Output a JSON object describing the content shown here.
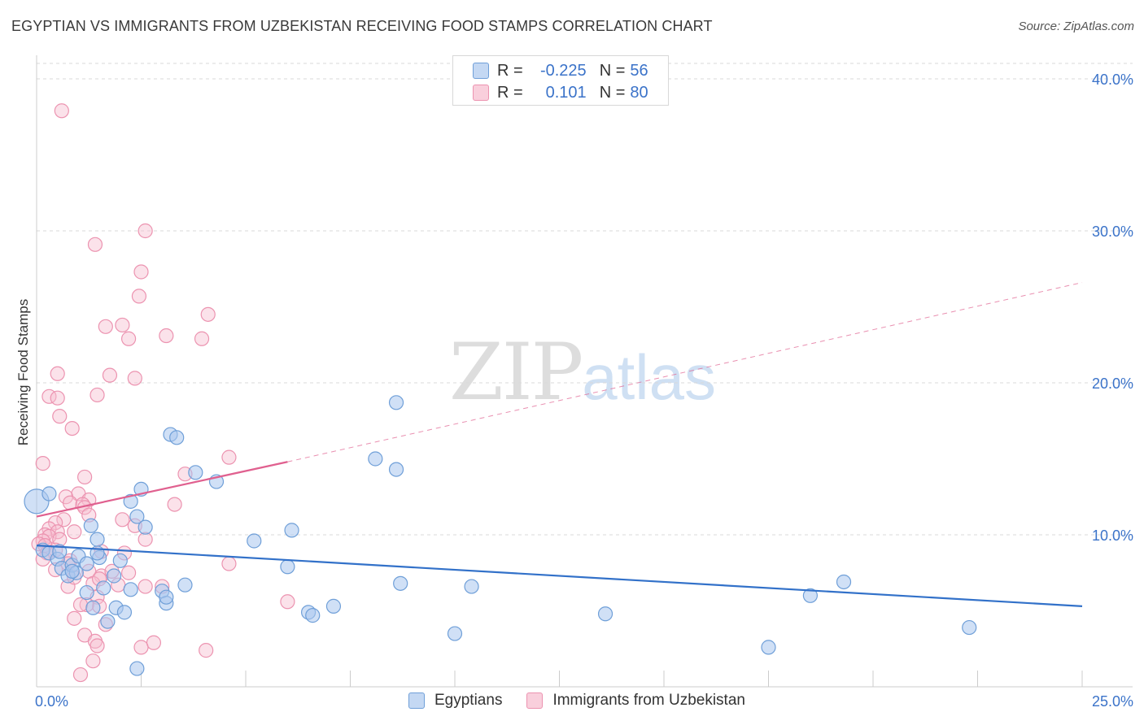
{
  "header": {
    "title": "EGYPTIAN VS IMMIGRANTS FROM UZBEKISTAN RECEIVING FOOD STAMPS CORRELATION CHART",
    "source": "Source: ZipAtlas.com"
  },
  "legend_top": {
    "rows": [
      {
        "r_label": "R =",
        "r_value": "-0.225",
        "n_label": "N =",
        "n_value": "56"
      },
      {
        "r_label": "R =",
        "r_value": "0.101",
        "n_label": "N =",
        "n_value": "80"
      }
    ]
  },
  "watermark": {
    "zip": "ZIP",
    "atlas": "atlas"
  },
  "colors": {
    "egypt_fill": "#a9c7ee",
    "egypt_stroke": "#6f9fd8",
    "egypt_line": "#3271c9",
    "uzb_fill": "#f7bfd0",
    "uzb_stroke": "#ec93b0",
    "uzb_line": "#e0608f",
    "tick_label": "#3b73c9",
    "grid": "#d9d9d9"
  },
  "chart_data": {
    "type": "scatter",
    "title": "EGYPTIAN VS IMMIGRANTS FROM UZBEKISTAN RECEIVING FOOD STAMPS CORRELATION CHART",
    "xlabel": "",
    "ylabel": "Receiving Food Stamps",
    "xlim": [
      0,
      25
    ],
    "ylim": [
      0,
      40
    ],
    "x_tick_labels": [
      "0.0%",
      "25.0%"
    ],
    "y_ticks": [
      10,
      20,
      30,
      40
    ],
    "y_tick_labels": [
      "10.0%",
      "20.0%",
      "30.0%",
      "40.0%"
    ],
    "grid": true,
    "legend_position": "top-center",
    "series": [
      {
        "name": "Egyptians",
        "trend": {
          "x": [
            0,
            25
          ],
          "y": [
            9.3,
            5.3
          ],
          "style": "solid"
        },
        "points": [
          [
            0.0,
            12.2
          ],
          [
            0.3,
            12.7
          ],
          [
            0.15,
            9.0
          ],
          [
            0.3,
            8.8
          ],
          [
            0.5,
            8.4
          ],
          [
            0.55,
            8.9
          ],
          [
            0.6,
            7.8
          ],
          [
            0.75,
            7.3
          ],
          [
            0.85,
            8.0
          ],
          [
            0.95,
            7.5
          ],
          [
            1.0,
            8.6
          ],
          [
            1.5,
            8.5
          ],
          [
            1.2,
            6.2
          ],
          [
            1.3,
            10.6
          ],
          [
            1.45,
            9.7
          ],
          [
            1.35,
            5.2
          ],
          [
            1.6,
            6.5
          ],
          [
            1.7,
            4.3
          ],
          [
            1.85,
            7.3
          ],
          [
            1.9,
            5.2
          ],
          [
            2.0,
            8.3
          ],
          [
            2.1,
            4.9
          ],
          [
            2.25,
            12.2
          ],
          [
            2.25,
            6.4
          ],
          [
            2.4,
            11.2
          ],
          [
            2.5,
            13.0
          ],
          [
            2.6,
            10.5
          ],
          [
            3.0,
            6.3
          ],
          [
            3.2,
            16.6
          ],
          [
            3.35,
            16.4
          ],
          [
            3.1,
            5.5
          ],
          [
            3.1,
            5.9
          ],
          [
            3.55,
            6.7
          ],
          [
            3.8,
            14.1
          ],
          [
            4.3,
            13.5
          ],
          [
            5.2,
            9.6
          ],
          [
            6.1,
            10.3
          ],
          [
            6.0,
            7.9
          ],
          [
            6.5,
            4.9
          ],
          [
            6.6,
            4.7
          ],
          [
            7.1,
            5.3
          ],
          [
            8.1,
            15.0
          ],
          [
            8.6,
            18.7
          ],
          [
            8.6,
            14.3
          ],
          [
            8.7,
            6.8
          ],
          [
            10.0,
            3.5
          ],
          [
            10.4,
            6.6
          ],
          [
            13.6,
            4.8
          ],
          [
            17.5,
            2.6
          ],
          [
            18.5,
            6.0
          ],
          [
            19.3,
            6.9
          ],
          [
            22.3,
            3.9
          ],
          [
            2.4,
            1.2
          ],
          [
            1.2,
            8.1
          ],
          [
            0.85,
            7.6
          ],
          [
            1.45,
            8.8
          ]
        ]
      },
      {
        "name": "Immigrants from Uzbekistan",
        "trend_solid": {
          "x": [
            0,
            6
          ],
          "y": [
            11.2,
            14.8
          ]
        },
        "trend_dashed": {
          "x": [
            6,
            25
          ],
          "y": [
            14.8,
            26.6
          ]
        },
        "points": [
          [
            0.6,
            37.9
          ],
          [
            2.6,
            30.0
          ],
          [
            1.4,
            29.1
          ],
          [
            2.5,
            27.3
          ],
          [
            2.45,
            25.7
          ],
          [
            4.1,
            24.5
          ],
          [
            1.65,
            23.7
          ],
          [
            2.05,
            23.8
          ],
          [
            3.1,
            23.1
          ],
          [
            3.95,
            22.9
          ],
          [
            2.2,
            22.9
          ],
          [
            0.5,
            20.6
          ],
          [
            1.75,
            20.5
          ],
          [
            2.35,
            20.3
          ],
          [
            0.3,
            19.1
          ],
          [
            0.5,
            19.0
          ],
          [
            1.45,
            19.2
          ],
          [
            0.55,
            17.8
          ],
          [
            0.85,
            17.0
          ],
          [
            4.6,
            15.1
          ],
          [
            0.15,
            14.7
          ],
          [
            3.55,
            14.0
          ],
          [
            1.15,
            13.8
          ],
          [
            1.0,
            12.7
          ],
          [
            1.25,
            12.3
          ],
          [
            0.7,
            12.5
          ],
          [
            0.8,
            12.1
          ],
          [
            1.1,
            12.0
          ],
          [
            1.15,
            11.8
          ],
          [
            3.3,
            12.0
          ],
          [
            1.25,
            11.3
          ],
          [
            2.05,
            11.0
          ],
          [
            0.65,
            11.0
          ],
          [
            0.45,
            10.8
          ],
          [
            0.3,
            10.4
          ],
          [
            0.5,
            10.2
          ],
          [
            0.9,
            10.2
          ],
          [
            0.2,
            10.0
          ],
          [
            0.3,
            9.9
          ],
          [
            0.15,
            9.6
          ],
          [
            0.55,
            9.7
          ],
          [
            2.35,
            10.6
          ],
          [
            2.6,
            9.7
          ],
          [
            0.05,
            9.4
          ],
          [
            0.2,
            9.3
          ],
          [
            0.45,
            9.0
          ],
          [
            0.25,
            8.8
          ],
          [
            0.15,
            8.4
          ],
          [
            1.55,
            8.9
          ],
          [
            2.1,
            8.8
          ],
          [
            0.8,
            8.3
          ],
          [
            0.75,
            8.1
          ],
          [
            4.6,
            8.1
          ],
          [
            0.45,
            7.7
          ],
          [
            1.25,
            7.6
          ],
          [
            1.55,
            7.3
          ],
          [
            1.8,
            7.6
          ],
          [
            2.2,
            7.5
          ],
          [
            0.75,
            6.6
          ],
          [
            1.35,
            6.8
          ],
          [
            1.95,
            6.7
          ],
          [
            3.0,
            6.6
          ],
          [
            2.6,
            6.6
          ],
          [
            1.45,
            5.9
          ],
          [
            1.5,
            5.3
          ],
          [
            1.2,
            5.4
          ],
          [
            1.05,
            5.4
          ],
          [
            6.0,
            5.6
          ],
          [
            0.9,
            4.5
          ],
          [
            1.65,
            4.1
          ],
          [
            1.15,
            3.4
          ],
          [
            1.4,
            3.0
          ],
          [
            2.8,
            2.9
          ],
          [
            1.45,
            2.7
          ],
          [
            2.5,
            2.6
          ],
          [
            4.05,
            2.4
          ],
          [
            1.35,
            1.7
          ],
          [
            1.05,
            0.8
          ],
          [
            1.5,
            7.1
          ],
          [
            0.9,
            7.2
          ]
        ]
      }
    ]
  },
  "legend_bottom": {
    "items": [
      "Egyptians",
      "Immigrants from Uzbekistan"
    ]
  }
}
